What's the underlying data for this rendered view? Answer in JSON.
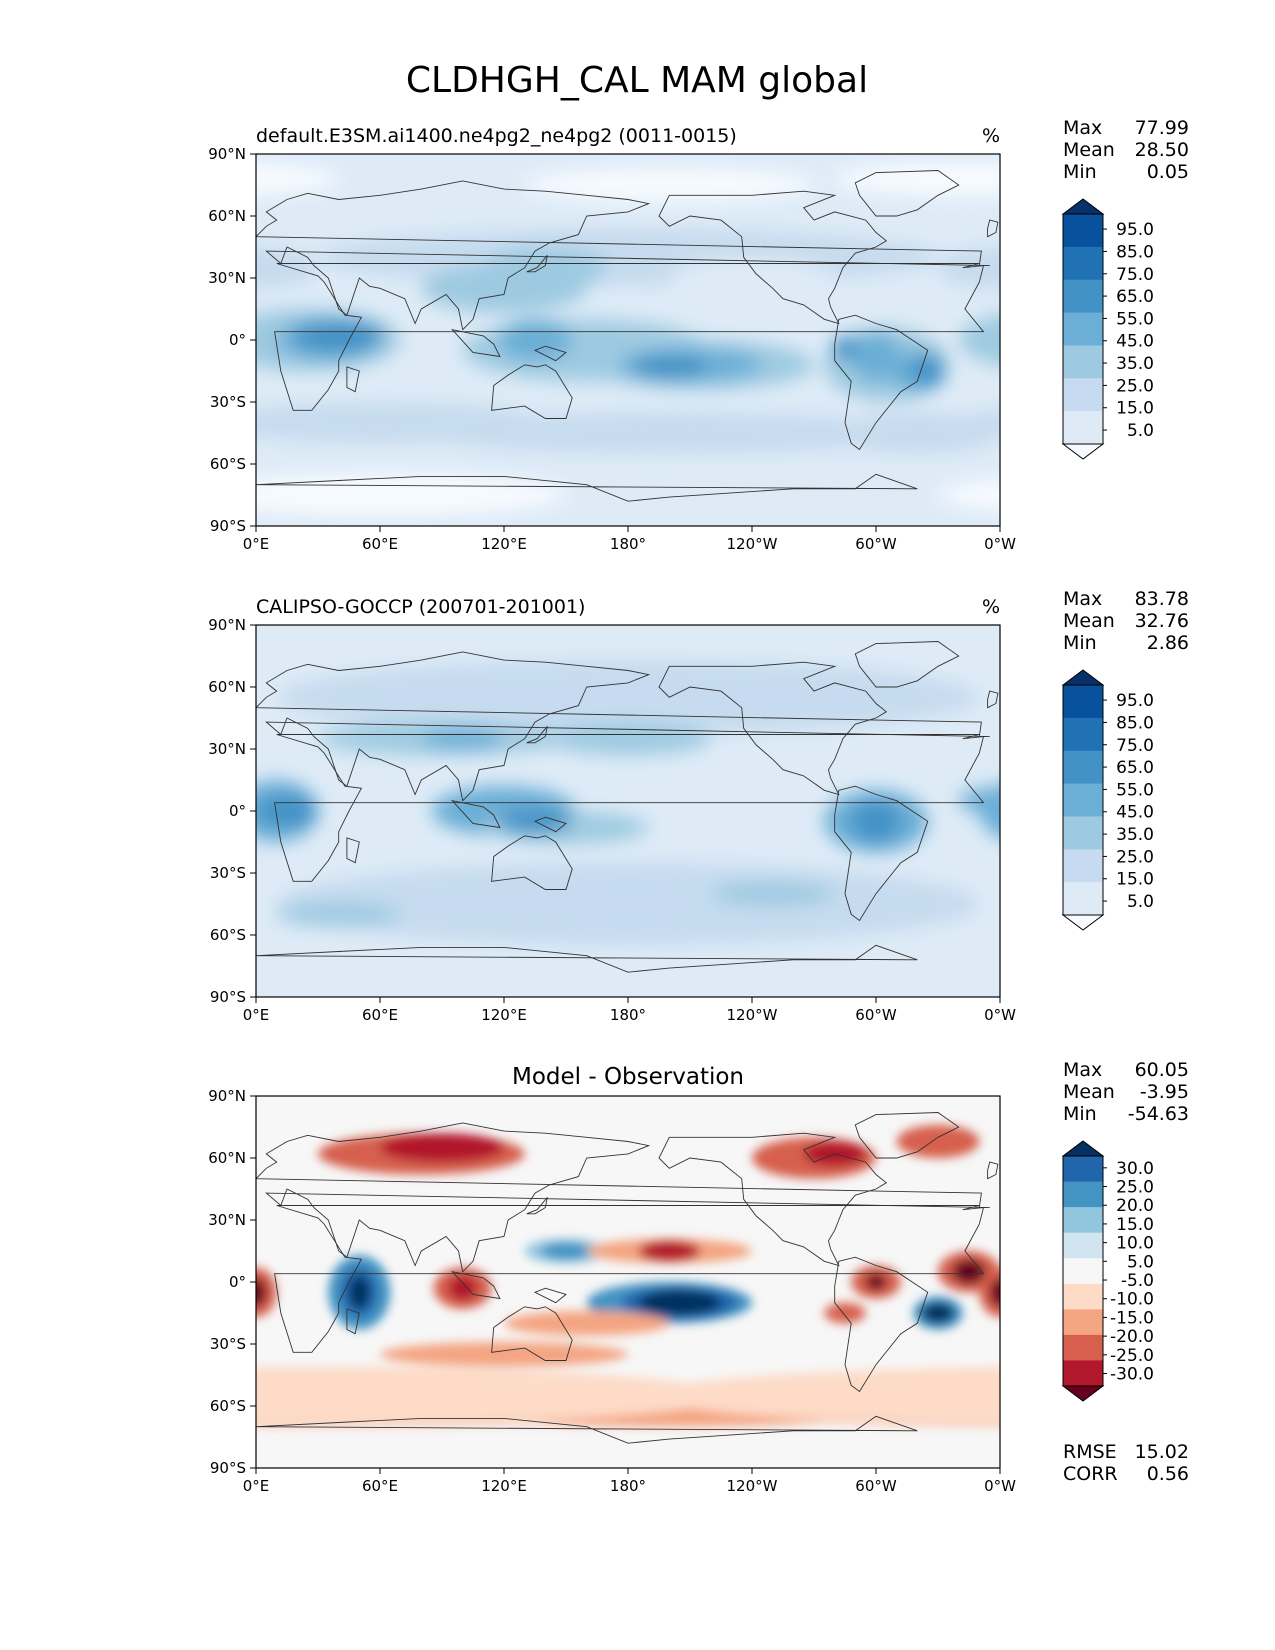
{
  "figure": {
    "title": "CLDHGH_CAL MAM global"
  },
  "colors": {
    "sequential": [
      "#f7fbff",
      "#deebf7",
      "#c6dbef",
      "#9ecae1",
      "#6baed6",
      "#4292c6",
      "#2171b5",
      "#08519c",
      "#08306b"
    ],
    "diverging": [
      "#67001f",
      "#b2182b",
      "#d6604d",
      "#f4a582",
      "#fddbc7",
      "#f7f7f7",
      "#d1e5f0",
      "#92c5de",
      "#4393c3",
      "#2166ac",
      "#053061"
    ],
    "coast": "#333333"
  },
  "chart_data": [
    {
      "type": "heatmap",
      "name": "model",
      "title_left": "default.E3SM.ai1400.ne4pg2_ne4pg2 (0011-0015)",
      "title_center": "",
      "units": "%",
      "xlabel": "",
      "ylabel": "",
      "lon_ticks": [
        "0°E",
        "60°E",
        "120°E",
        "180°",
        "120°W",
        "60°W",
        "0°W"
      ],
      "lat_ticks": [
        "90°N",
        "60°N",
        "30°N",
        "0°",
        "30°S",
        "60°S",
        "90°S"
      ],
      "stats": [
        {
          "label": "Max",
          "value": "77.99"
        },
        {
          "label": "Mean",
          "value": "28.50"
        },
        {
          "label": "Min",
          "value": "0.05"
        }
      ],
      "colorbar_type": "sequential",
      "colorbar_labels": [
        "95.0",
        "85.0",
        "75.0",
        "65.0",
        "55.0",
        "45.0",
        "35.0",
        "25.0",
        "15.0",
        "5.0"
      ],
      "extra_stats": []
    },
    {
      "type": "heatmap",
      "name": "obs",
      "title_left": "CALIPSO-GOCCP (200701-201001)",
      "title_center": "",
      "units": "%",
      "xlabel": "",
      "ylabel": "",
      "lon_ticks": [
        "0°E",
        "60°E",
        "120°E",
        "180°",
        "120°W",
        "60°W",
        "0°W"
      ],
      "lat_ticks": [
        "90°N",
        "60°N",
        "30°N",
        "0°",
        "30°S",
        "60°S",
        "90°S"
      ],
      "stats": [
        {
          "label": "Max",
          "value": "83.78"
        },
        {
          "label": "Mean",
          "value": "32.76"
        },
        {
          "label": "Min",
          "value": "2.86"
        }
      ],
      "colorbar_type": "sequential",
      "colorbar_labels": [
        "95.0",
        "85.0",
        "75.0",
        "65.0",
        "55.0",
        "45.0",
        "35.0",
        "25.0",
        "15.0",
        "5.0"
      ],
      "extra_stats": []
    },
    {
      "type": "heatmap",
      "name": "diff",
      "title_left": "",
      "title_center": "Model - Observation",
      "units": "",
      "xlabel": "",
      "ylabel": "",
      "lon_ticks": [
        "0°E",
        "60°E",
        "120°E",
        "180°",
        "120°W",
        "60°W",
        "0°W"
      ],
      "lat_ticks": [
        "90°N",
        "60°N",
        "30°N",
        "0°",
        "30°S",
        "60°S",
        "90°S"
      ],
      "stats": [
        {
          "label": "Max",
          "value": "60.05"
        },
        {
          "label": "Mean",
          "value": "-3.95"
        },
        {
          "label": "Min",
          "value": "-54.63"
        }
      ],
      "colorbar_type": "diverging",
      "colorbar_labels": [
        "30.0",
        "25.0",
        "20.0",
        "15.0",
        "10.0",
        "5.0",
        "-5.0",
        "-10.0",
        "-15.0",
        "-20.0",
        "-25.0",
        "-30.0"
      ],
      "extra_stats": [
        {
          "label": "RMSE",
          "value": "15.02"
        },
        {
          "label": "CORR",
          "value": "0.56"
        }
      ]
    }
  ]
}
